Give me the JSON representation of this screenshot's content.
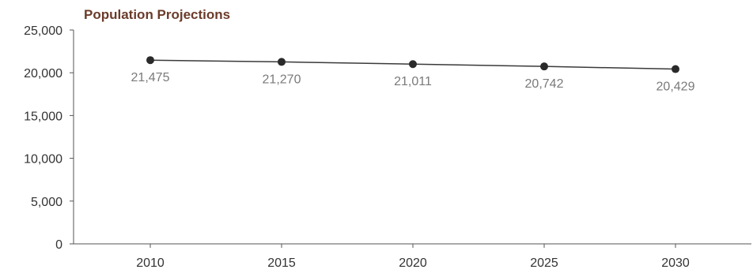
{
  "chart_data": {
    "type": "line",
    "title": "Population Projections",
    "xlabel": "",
    "ylabel": "",
    "categories": [
      "2010",
      "2015",
      "2020",
      "2025",
      "2030"
    ],
    "series": [
      {
        "values": [
          21475,
          21270,
          21011,
          20742,
          20429
        ],
        "data_labels": [
          "21,475",
          "21,270",
          "21,011",
          "20,742",
          "20,429"
        ]
      }
    ],
    "ylim": [
      0,
      25000
    ],
    "y_ticks": [
      0,
      5000,
      10000,
      15000,
      20000,
      25000
    ],
    "y_tick_labels": [
      "0",
      "5,000",
      "10,000",
      "15,000",
      "20,000",
      "25,000"
    ],
    "grid": false,
    "legend": "none",
    "colors": {
      "title": "#6b3b2a",
      "line": "#3a3a3a",
      "marker": "#2a2a2a",
      "axis": "#555555",
      "tick_label": "#333333",
      "data_label": "#7a7a7a"
    }
  }
}
